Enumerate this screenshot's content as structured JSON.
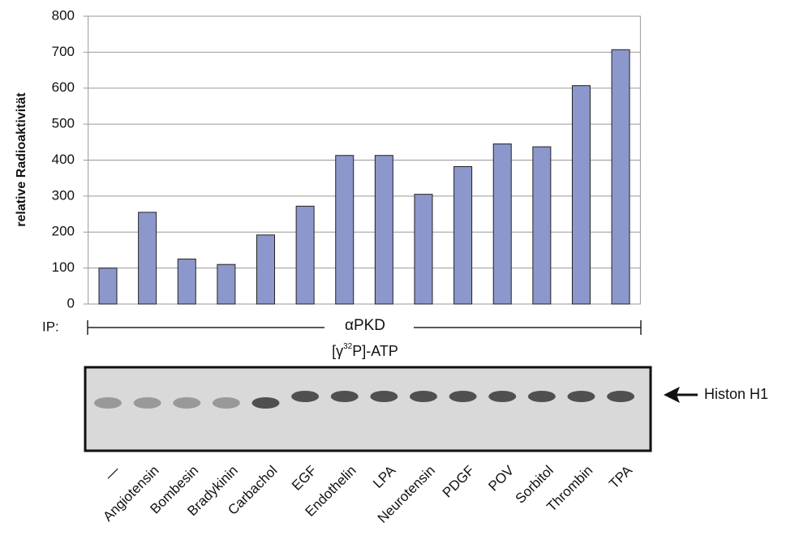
{
  "chart_data": {
    "type": "bar",
    "y_label": "relative Radioaktivität",
    "categories": [
      "—",
      "Angiotensin",
      "Bombesin",
      "Bradykinin",
      "Carbachol",
      "EGF",
      "Endothelin",
      "LPA",
      "Neurotensin",
      "PDGF",
      "POV",
      "Sorbitol",
      "Thrombin",
      "TPA"
    ],
    "values": [
      100,
      255,
      125,
      110,
      192,
      272,
      413,
      413,
      305,
      382,
      445,
      437,
      607,
      707
    ],
    "color": "#8c98cc",
    "ylim": [
      0,
      800
    ],
    "yticks": [
      0,
      100,
      200,
      300,
      400,
      500,
      600,
      700,
      800
    ],
    "grid": true,
    "ip_label": "IP:",
    "antibody": "αPKD",
    "substrate_parts": [
      "[γ",
      "32",
      "P]-ATP"
    ],
    "band_label": "Histon H1"
  }
}
